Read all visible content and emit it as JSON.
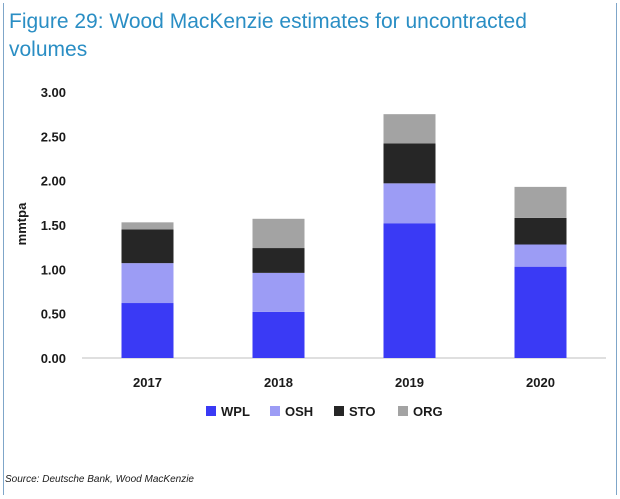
{
  "title": "Figure 29: Wood MacKenzie estimates for uncontracted volumes",
  "source": "Source: Deutsche Bank, Wood MacKenzie",
  "chart_data": {
    "type": "bar",
    "stacked": true,
    "categories": [
      "2017",
      "2018",
      "2019",
      "2020"
    ],
    "ylabel": "mmtpa",
    "xlabel": "",
    "ylim": [
      0,
      3.0
    ],
    "yticks": [
      "0.00",
      "0.50",
      "1.00",
      "1.50",
      "2.00",
      "2.50",
      "3.00"
    ],
    "grid": false,
    "legend": "bottom",
    "series": [
      {
        "name": "WPL",
        "color": "#3a3af5",
        "values": [
          0.62,
          0.52,
          1.52,
          1.03
        ]
      },
      {
        "name": "OSH",
        "color": "#9c9cf5",
        "values": [
          0.45,
          0.44,
          0.45,
          0.25
        ]
      },
      {
        "name": "STO",
        "color": "#262626",
        "values": [
          0.38,
          0.28,
          0.45,
          0.3
        ]
      },
      {
        "name": "ORG",
        "color": "#a3a3a3",
        "values": [
          0.08,
          0.33,
          0.33,
          0.35
        ]
      }
    ]
  }
}
